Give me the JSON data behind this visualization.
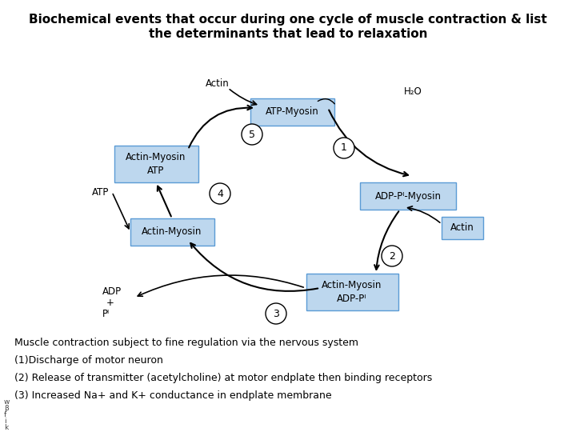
{
  "title_line1": "Biochemical events that occur during one cycle of muscle contraction & list",
  "title_line2": "the determinants that lead to relaxation",
  "bg_color": "#ffffff",
  "box_fill": "#bdd7ee",
  "box_edge": "#5b9bd5",
  "actin_fill": "#bdd7ee",
  "actin_edge": "#5b9bd5",
  "footer_lines": [
    "Muscle contraction subject to fine regulation via the nervous system",
    "(1)Discharge of motor neuron",
    "(2) Release of transmitter (acetylcholine) at motor endplate then binding receptors",
    "(3) Increased Na+ and K+ conductance in endplate membrane"
  ],
  "watermark": [
    "w",
    "β",
    "f",
    "i",
    "k"
  ],
  "text_color": "#000000",
  "font_size_title": 11,
  "font_size_box": 8.5,
  "font_size_step": 9,
  "font_size_footer": 9,
  "font_size_label": 8.5,
  "boxes_cx": {
    "atp_myosin": 0.5,
    "adp_pi_myosin": 0.72,
    "actin_my_adp": 0.565,
    "actin_myosin": 0.255,
    "actin_my_atp": 0.23
  },
  "boxes_cy": {
    "atp_myosin": 0.845,
    "adp_pi_myosin": 0.62,
    "actin_my_adp": 0.34,
    "actin_myosin": 0.48,
    "actin_my_atp": 0.68
  }
}
